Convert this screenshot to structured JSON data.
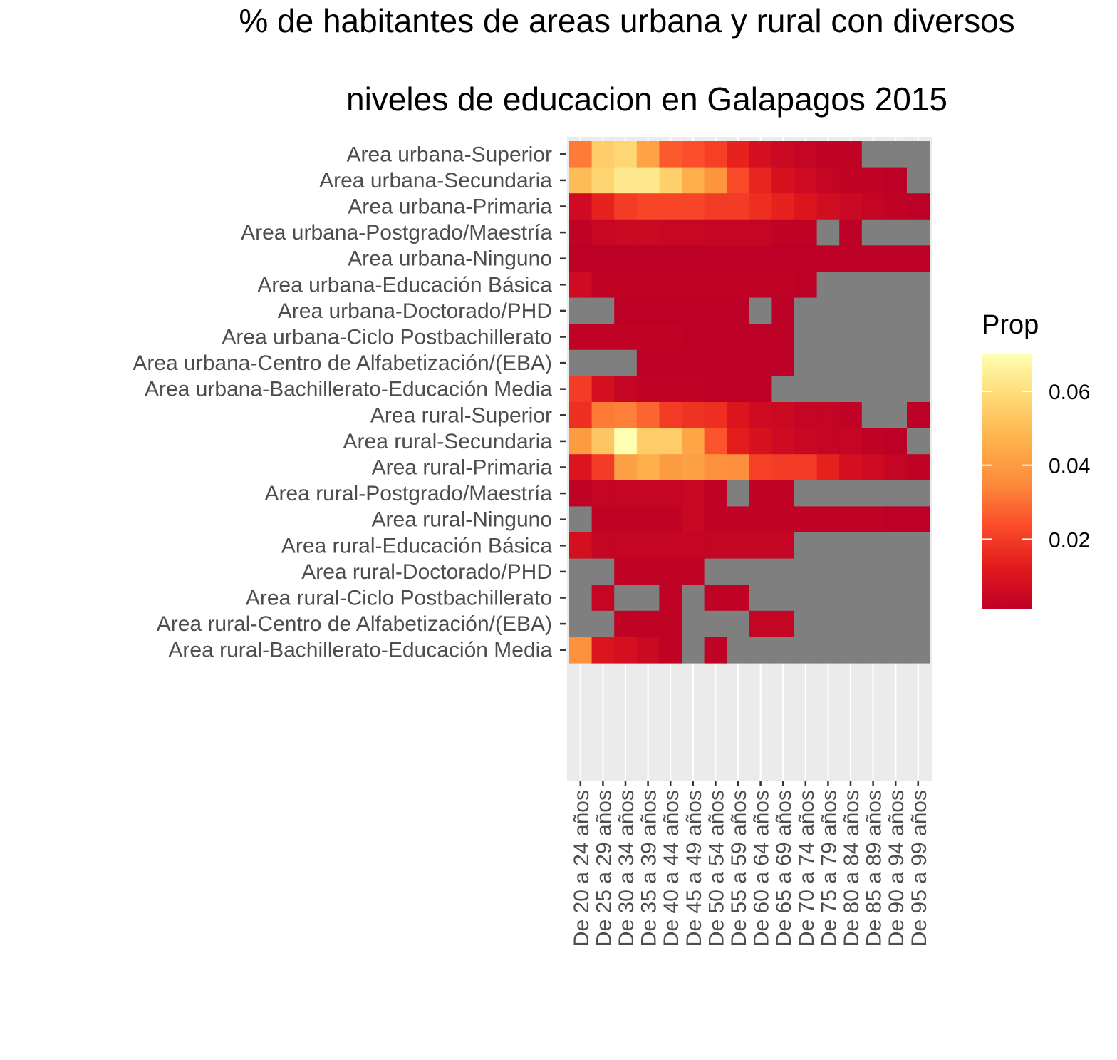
{
  "title_lines": [
    "% de habitantes de areas urbana y rural con diversos",
    "niveles de educacion en Galapagos 2015"
  ],
  "chart_data": {
    "type": "heatmap",
    "title": "% de habitantes de areas urbana y rural con diversos niveles de educacion en Galapagos 2015",
    "xlabel": "",
    "ylabel": "",
    "x_categories": [
      "De 20 a 24 años",
      "De 25 a 29 años",
      "De 30 a 34 años",
      "De 35 a 39 años",
      "De 40 a 44 años",
      "De 45 a 49 años",
      "De 50 a 54 años",
      "De 55 a 59 años",
      "De 60 a 64 años",
      "De 65 a 69 años",
      "De 70 a 74 años",
      "De 75 a 79 años",
      "De 80 a 84 años",
      "De 85 a 89 años",
      "De 90 a 94 años",
      "De 95 a 99 años"
    ],
    "y_categories": [
      "Area urbana-Superior",
      "Area urbana-Secundaria",
      "Area urbana-Primaria",
      "Area urbana-Postgrado/Maestría",
      "Area urbana-Ninguno",
      "Area urbana-Educación Básica",
      "Area urbana-Doctorado/PHD",
      "Area urbana-Ciclo Postbachillerato",
      "Area urbana-Centro de Alfabetización/(EBA)",
      "Area urbana-Bachillerato-Educación Media",
      "Area rural-Superior",
      "Area rural-Secundaria",
      "Area rural-Primaria",
      "Area rural-Postgrado/Maestría",
      "Area rural-Ninguno",
      "Area rural-Educación Básica",
      "Area rural-Doctorado/PHD",
      "Area rural-Ciclo Postbachillerato",
      "Area rural-Centro de Alfabetización/(EBA)",
      "Area rural-Bachillerato-Educación Media"
    ],
    "values": [
      [
        0.032,
        0.055,
        0.058,
        0.042,
        0.026,
        0.024,
        0.021,
        0.014,
        0.008,
        0.005,
        0.003,
        0.002,
        0.002,
        null,
        null,
        null
      ],
      [
        0.05,
        0.057,
        0.063,
        0.063,
        0.056,
        0.046,
        0.038,
        0.023,
        0.015,
        0.009,
        0.006,
        0.003,
        0.002,
        0.002,
        0.001,
        null
      ],
      [
        0.006,
        0.014,
        0.02,
        0.022,
        0.022,
        0.022,
        0.02,
        0.02,
        0.017,
        0.014,
        0.01,
        0.007,
        0.005,
        0.003,
        0.002,
        0.001
      ],
      [
        0.002,
        0.004,
        0.005,
        0.005,
        0.004,
        0.004,
        0.003,
        0.003,
        0.003,
        0.002,
        0.002,
        null,
        0.001,
        null,
        null,
        null
      ],
      [
        0.001,
        0.001,
        0.001,
        0.001,
        0.001,
        0.001,
        0.001,
        0.001,
        0.001,
        0.001,
        0.001,
        0.001,
        0.001,
        0.001,
        0.001,
        0.001
      ],
      [
        0.006,
        0.002,
        0.002,
        0.002,
        0.002,
        0.002,
        0.002,
        0.002,
        0.002,
        0.002,
        0.001,
        null,
        null,
        null,
        null,
        null
      ],
      [
        null,
        null,
        0.001,
        0.001,
        0.001,
        0.001,
        0.001,
        0.001,
        null,
        0.001,
        null,
        null,
        null,
        null,
        null,
        null
      ],
      [
        0.002,
        0.002,
        0.002,
        0.002,
        0.002,
        0.001,
        0.001,
        0.001,
        0.001,
        0.001,
        null,
        null,
        null,
        null,
        null,
        null
      ],
      [
        null,
        null,
        null,
        0.001,
        0.001,
        0.001,
        0.001,
        0.001,
        0.001,
        0.001,
        null,
        null,
        null,
        null,
        null,
        null
      ],
      [
        0.02,
        0.008,
        0.003,
        0.002,
        0.002,
        0.002,
        0.001,
        0.001,
        0.001,
        null,
        null,
        null,
        null,
        null,
        null,
        null
      ],
      [
        0.017,
        0.032,
        0.033,
        0.028,
        0.02,
        0.018,
        0.017,
        0.01,
        0.006,
        0.005,
        0.003,
        0.003,
        0.002,
        null,
        null,
        0.001
      ],
      [
        0.04,
        0.053,
        0.07,
        0.055,
        0.055,
        0.043,
        0.025,
        0.013,
        0.009,
        0.006,
        0.004,
        0.003,
        0.003,
        0.002,
        0.001,
        null
      ],
      [
        0.01,
        0.02,
        0.041,
        0.046,
        0.04,
        0.041,
        0.037,
        0.036,
        0.021,
        0.02,
        0.02,
        0.014,
        0.008,
        0.006,
        0.003,
        0.002
      ],
      [
        0.002,
        0.003,
        0.003,
        0.003,
        0.003,
        0.004,
        0.002,
        null,
        0.002,
        0.002,
        null,
        null,
        null,
        null,
        null,
        null
      ],
      [
        null,
        0.002,
        0.002,
        0.002,
        0.002,
        0.004,
        0.002,
        0.002,
        0.002,
        0.002,
        0.002,
        0.002,
        0.002,
        0.002,
        0.001,
        0.001
      ],
      [
        0.008,
        0.003,
        0.003,
        0.003,
        0.003,
        0.003,
        0.003,
        0.003,
        0.003,
        0.003,
        null,
        null,
        null,
        null,
        null,
        null
      ],
      [
        null,
        null,
        0.002,
        0.002,
        0.002,
        0.002,
        null,
        null,
        null,
        null,
        null,
        null,
        null,
        null,
        null,
        null
      ],
      [
        null,
        0.003,
        null,
        null,
        0.002,
        null,
        0.002,
        0.002,
        null,
        null,
        null,
        null,
        null,
        null,
        null,
        null
      ],
      [
        null,
        null,
        0.002,
        0.002,
        0.002,
        null,
        null,
        null,
        0.003,
        0.003,
        null,
        null,
        null,
        null,
        null,
        null
      ],
      [
        0.037,
        0.01,
        0.008,
        0.005,
        0.002,
        null,
        0.002,
        null,
        null,
        null,
        null,
        null,
        null,
        null,
        null,
        null
      ]
    ],
    "legend": {
      "title": "Prop",
      "position": "right",
      "ticks": [
        0.02,
        0.04,
        0.06
      ],
      "tick_labels": [
        "0.02",
        "0.04",
        "0.06"
      ],
      "range": [
        0.001,
        0.07
      ]
    },
    "colors": {
      "scale": [
        "#bd0026",
        "#e31a1c",
        "#fc4e2a",
        "#fd8d3c",
        "#feb24c",
        "#fed976",
        "#ffffb2"
      ],
      "missing": "#7f7f7f",
      "panel_background": "#ebebeb",
      "grid": "#ffffff"
    }
  }
}
